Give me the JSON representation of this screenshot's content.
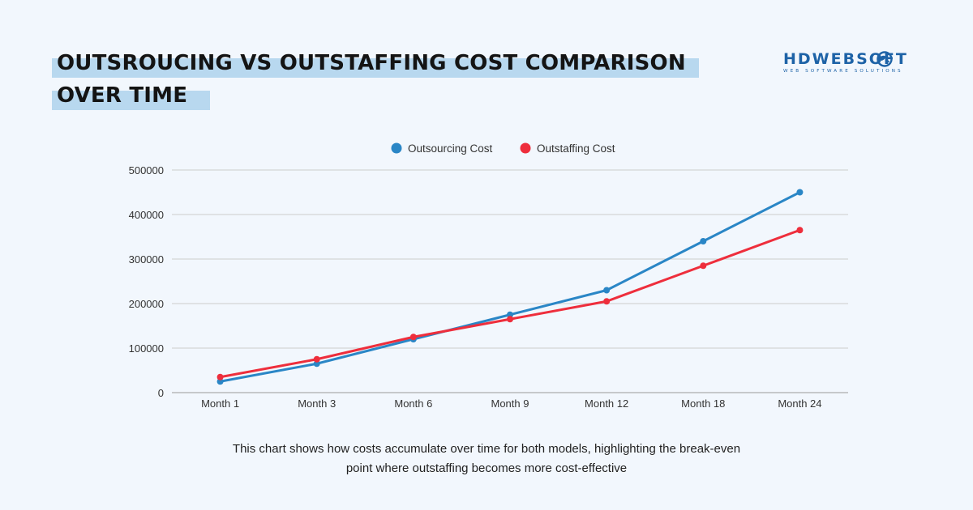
{
  "header": {
    "title_line1": "OUTSROUCING VS OUTSTAFFING COST COMPARISON",
    "title_line2": "OVER TIME",
    "logo_main": "HDWEBSOFT",
    "logo_sub": "WEB SOFTWARE SOLUTIONS"
  },
  "caption": {
    "line1": "This chart shows how costs accumulate over time for both models, highlighting the break-even",
    "line2": "point where outstaffing becomes more cost-effective"
  },
  "colors": {
    "outsourcing": "#2a86c6",
    "outstaffing": "#ee2e3c",
    "grid": "#cccccc",
    "brand": "#1e63a7"
  },
  "chart_data": {
    "type": "line",
    "title": "",
    "xlabel": "",
    "ylabel": "",
    "categories": [
      "Month 1",
      "Month 3",
      "Month 6",
      "Month 9",
      "Month 12",
      "Month 18",
      "Month 24"
    ],
    "series": [
      {
        "name": "Outsourcing Cost",
        "values": [
          25000,
          65000,
          120000,
          175000,
          230000,
          340000,
          450000
        ]
      },
      {
        "name": "Outstaffing Cost",
        "values": [
          35000,
          75000,
          125000,
          165000,
          205000,
          285000,
          365000
        ]
      }
    ],
    "ylim": [
      0,
      500000
    ],
    "yticks": [
      "0",
      "100000",
      "200000",
      "300000",
      "400000",
      "500000"
    ],
    "grid": true,
    "legend": "top-center"
  }
}
